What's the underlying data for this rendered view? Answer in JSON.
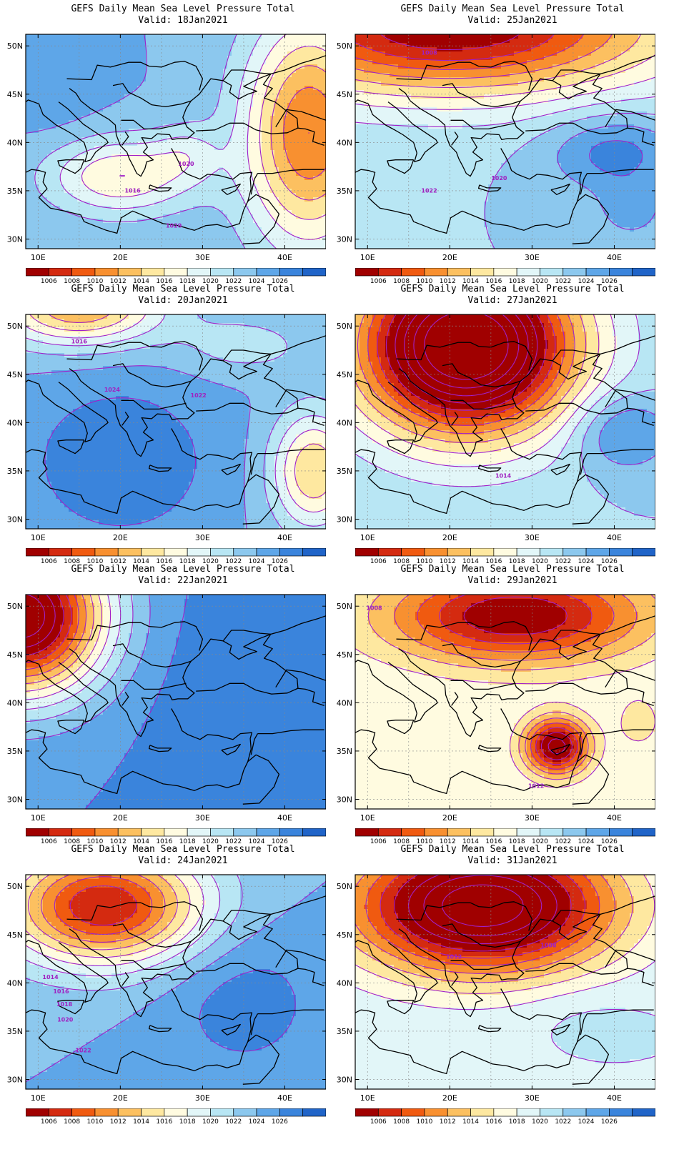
{
  "colorbar": {
    "colors": [
      "#a00000",
      "#d42a10",
      "#f05a10",
      "#f89030",
      "#fcc060",
      "#fee8a0",
      "#fffbe0",
      "#e2f6f8",
      "#b8e6f4",
      "#8cc8ee",
      "#5ea6e8",
      "#3a84dc",
      "#2064c8"
    ],
    "labels": [
      "1006",
      "1008",
      "1010",
      "1012",
      "1014",
      "1016",
      "1018",
      "1020",
      "1022",
      "1024",
      "1026"
    ]
  },
  "axes": {
    "lon_ticks": [
      "10E",
      "20E",
      "30E",
      "40E"
    ],
    "lat_ticks": [
      "50N",
      "45N",
      "40N",
      "35N",
      "30N"
    ]
  },
  "panels": [
    {
      "title": "GEFS Daily Mean Sea Level Pressure Total",
      "valid": "Valid:  18Jan2021",
      "base": 1024,
      "features": [
        {
          "lon": 20,
          "lat": 36.5,
          "p": 1016,
          "rx": 9,
          "ry": 4
        },
        {
          "lon": 28,
          "lat": 39,
          "p": 1021,
          "rx": 4,
          "ry": 3
        },
        {
          "lon": 43,
          "lat": 41,
          "p": 1010,
          "rx": 8,
          "ry": 12
        },
        {
          "lon": 12,
          "lat": 45,
          "p": 1025,
          "rx": 6,
          "ry": 6
        }
      ],
      "contour_labels": [
        {
          "text": "1020",
          "lon": 28,
          "lat": 37.6
        },
        {
          "text": "1016",
          "lon": 21.5,
          "lat": 34.8
        },
        {
          "text": "1020",
          "lon": 26.5,
          "lat": 31.2
        }
      ]
    },
    {
      "title": "GEFS Daily Mean Sea Level Pressure Total",
      "valid": "Valid:  25Jan2021",
      "base": 1022,
      "features": [
        {
          "lon": 20,
          "lat": 52,
          "p": 1004,
          "rx": 26,
          "ry": 7
        },
        {
          "lon": 40,
          "lat": 39,
          "p": 1027,
          "rx": 8,
          "ry": 4
        },
        {
          "lon": 42,
          "lat": 33,
          "p": 1025,
          "rx": 4,
          "ry": 3
        }
      ],
      "contour_labels": [
        {
          "text": "1008",
          "lon": 17.5,
          "lat": 49.1
        },
        {
          "text": "1020",
          "lon": 26,
          "lat": 36.1
        },
        {
          "text": "1022",
          "lon": 17.5,
          "lat": 34.8
        }
      ]
    },
    {
      "title": "GEFS Daily Mean Sea Level Pressure Total",
      "valid": "Valid:  20Jan2021",
      "base": 1024,
      "features": [
        {
          "lon": 15,
          "lat": 52,
          "p": 1012,
          "rx": 10,
          "ry": 4
        },
        {
          "lon": 20,
          "lat": 36,
          "p": 1028,
          "rx": 11,
          "ry": 8
        },
        {
          "lon": 43.5,
          "lat": 35,
          "p": 1014,
          "rx": 5,
          "ry": 6
        },
        {
          "lon": 35,
          "lat": 48,
          "p": 1021,
          "rx": 8,
          "ry": 3
        }
      ],
      "contour_labels": [
        {
          "text": "1016",
          "lon": 15,
          "lat": 48.2
        },
        {
          "text": "1024",
          "lon": 19,
          "lat": 43.2
        },
        {
          "text": "1022",
          "lon": 29.5,
          "lat": 42.6
        }
      ]
    },
    {
      "title": "GEFS Daily Mean Sea Level Pressure Total",
      "valid": "Valid:  27Jan2021",
      "base": 1022,
      "features": [
        {
          "lon": 22,
          "lat": 48,
          "p": 994,
          "rx": 13,
          "ry": 9
        },
        {
          "lon": 41,
          "lat": 39,
          "p": 1027,
          "rx": 6,
          "ry": 4
        }
      ],
      "contour_labels": [
        {
          "text": "1014",
          "lon": 26.5,
          "lat": 34.3
        }
      ]
    },
    {
      "title": "GEFS Daily Mean Sea Level Pressure Total",
      "valid": "Valid:  22Jan2021",
      "base": 1026,
      "features": [
        {
          "lon": 8,
          "lat": 49,
          "p": 1000,
          "rx": 10,
          "ry": 8
        },
        {
          "lon": 38,
          "lat": 40,
          "p": 1028,
          "rx": 12,
          "ry": 12
        }
      ],
      "contour_labels": []
    },
    {
      "title": "GEFS Daily Mean Sea Level Pressure Total",
      "valid": "Valid:  29Jan2021",
      "base": 1018,
      "features": [
        {
          "lon": 28,
          "lat": 49,
          "p": 1004,
          "rx": 16,
          "ry": 5
        },
        {
          "lon": 33,
          "lat": 35.5,
          "p": 1003,
          "rx": 4,
          "ry": 3
        },
        {
          "lon": 43,
          "lat": 38,
          "p": 1015,
          "rx": 3,
          "ry": 3
        }
      ],
      "contour_labels": [
        {
          "text": "1008",
          "lon": 10.8,
          "lat": 49.6
        },
        {
          "text": "1012",
          "lon": 30.5,
          "lat": 31.2
        }
      ]
    },
    {
      "title": "GEFS Daily Mean Sea Level Pressure Total",
      "valid": "Valid:  24Jan2021",
      "base": 1024,
      "features": [
        {
          "lon": 18,
          "lat": 48,
          "p": 1006,
          "rx": 12,
          "ry": 6
        },
        {
          "lon": 35,
          "lat": 38,
          "p": 1027,
          "rx": 10,
          "ry": 8
        }
      ],
      "contour_labels": [
        {
          "text": "1014",
          "lon": 11.5,
          "lat": 40.4
        },
        {
          "text": "1016",
          "lon": 12.8,
          "lat": 38.9
        },
        {
          "text": "1018",
          "lon": 13.2,
          "lat": 37.6
        },
        {
          "text": "1020",
          "lon": 13.3,
          "lat": 36
        },
        {
          "text": "1022",
          "lon": 15.5,
          "lat": 32.8
        }
      ]
    },
    {
      "title": "GEFS Daily Mean Sea Level Pressure Total",
      "valid": "Valid:  31Jan2021",
      "base": 1020,
      "features": [
        {
          "lon": 24,
          "lat": 48,
          "p": 998,
          "rx": 16,
          "ry": 7
        },
        {
          "lon": 36,
          "lat": 37,
          "p": 1021,
          "rx": 8,
          "ry": 3
        }
      ],
      "contour_labels": [
        {
          "text": "1008",
          "lon": 32,
          "lat": 43.7
        },
        {
          "text": "1012",
          "lon": 20.5,
          "lat": 42.5
        }
      ]
    }
  ]
}
